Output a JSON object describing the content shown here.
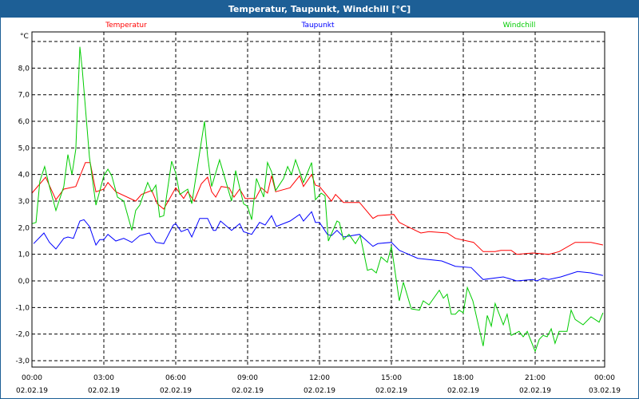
{
  "window": {
    "title": "Temperatur, Taupunkt, Windchill [°C]"
  },
  "chart_data": {
    "type": "line",
    "title": "Temperatur, Taupunkt, Windchill [°C]",
    "ylabel": "°C",
    "xlabel": "",
    "x_unit": "hours since 02.02.19 00:00",
    "xlim": [
      0,
      24
    ],
    "ylim": [
      -3.25,
      9.4
    ],
    "grid": true,
    "legend_placement": "top",
    "yticks": [
      8,
      7,
      6,
      5,
      4,
      3,
      2,
      1,
      0,
      -1,
      -2,
      -3
    ],
    "ytick_labels": [
      "8,0",
      "7,0",
      "6,0",
      "5,0",
      "4,0",
      "3,0",
      "2,0",
      "1,0",
      "0,0",
      "-1,0",
      "-2,0",
      "-3,0"
    ],
    "extra_gridlines_y": [
      9
    ],
    "xticks": [
      0,
      3,
      6,
      9,
      12,
      15,
      18,
      21,
      24
    ],
    "xtick_labels": [
      {
        "time": "00:00",
        "date": "02.02.19"
      },
      {
        "time": "03:00",
        "date": "02.02.19"
      },
      {
        "time": "06:00",
        "date": "02.02.19"
      },
      {
        "time": "09:00",
        "date": "02.02.19"
      },
      {
        "time": "12:00",
        "date": "02.02.19"
      },
      {
        "time": "15:00",
        "date": "02.02.19"
      },
      {
        "time": "18:00",
        "date": "02.02.19"
      },
      {
        "time": "21:00",
        "date": "02.02.19"
      },
      {
        "time": "00:00",
        "date": "03.02.19"
      }
    ],
    "series": [
      {
        "name": "Temperatur",
        "color": "#ff0000",
        "points": [
          [
            0,
            3.3
          ],
          [
            0.57,
            3.9
          ],
          [
            1.0,
            3.05
          ],
          [
            1.33,
            3.45
          ],
          [
            1.83,
            3.55
          ],
          [
            2.23,
            4.45
          ],
          [
            2.43,
            4.45
          ],
          [
            2.67,
            3.35
          ],
          [
            3.0,
            3.45
          ],
          [
            3.17,
            3.7
          ],
          [
            3.5,
            3.35
          ],
          [
            4.33,
            3.0
          ],
          [
            4.57,
            3.25
          ],
          [
            5.0,
            3.4
          ],
          [
            5.23,
            2.9
          ],
          [
            5.5,
            2.7
          ],
          [
            6.0,
            3.5
          ],
          [
            6.33,
            3.1
          ],
          [
            6.5,
            3.35
          ],
          [
            6.77,
            3.0
          ],
          [
            7.07,
            3.65
          ],
          [
            7.33,
            3.9
          ],
          [
            7.5,
            3.35
          ],
          [
            7.67,
            3.15
          ],
          [
            7.9,
            3.55
          ],
          [
            8.23,
            3.5
          ],
          [
            8.43,
            3.15
          ],
          [
            8.67,
            3.45
          ],
          [
            8.9,
            3.1
          ],
          [
            9.33,
            3.1
          ],
          [
            9.57,
            3.5
          ],
          [
            9.83,
            3.3
          ],
          [
            10.0,
            3.95
          ],
          [
            10.17,
            3.35
          ],
          [
            10.77,
            3.5
          ],
          [
            11.17,
            3.95
          ],
          [
            11.33,
            3.55
          ],
          [
            11.67,
            4.0
          ],
          [
            11.83,
            3.6
          ],
          [
            12.0,
            3.55
          ],
          [
            12.5,
            3.0
          ],
          [
            12.67,
            3.25
          ],
          [
            13.0,
            2.95
          ],
          [
            13.67,
            2.95
          ],
          [
            14.23,
            2.35
          ],
          [
            14.43,
            2.45
          ],
          [
            15.1,
            2.5
          ],
          [
            15.33,
            2.2
          ],
          [
            15.77,
            2.0
          ],
          [
            16.23,
            1.8
          ],
          [
            16.57,
            1.85
          ],
          [
            17.33,
            1.8
          ],
          [
            17.67,
            1.6
          ],
          [
            18.43,
            1.45
          ],
          [
            18.83,
            1.1
          ],
          [
            19.33,
            1.1
          ],
          [
            19.57,
            1.15
          ],
          [
            20.0,
            1.15
          ],
          [
            20.23,
            1.0
          ],
          [
            20.9,
            1.05
          ],
          [
            21.57,
            1.0
          ],
          [
            22.0,
            1.1
          ],
          [
            22.67,
            1.45
          ],
          [
            23.33,
            1.45
          ],
          [
            23.83,
            1.35
          ]
        ]
      },
      {
        "name": "Taupunkt",
        "color": "#0000ff",
        "points": [
          [
            0.07,
            1.4
          ],
          [
            0.5,
            1.8
          ],
          [
            0.73,
            1.45
          ],
          [
            1.0,
            1.2
          ],
          [
            1.33,
            1.6
          ],
          [
            1.5,
            1.65
          ],
          [
            1.73,
            1.6
          ],
          [
            2.0,
            2.25
          ],
          [
            2.17,
            2.3
          ],
          [
            2.4,
            2.05
          ],
          [
            2.67,
            1.35
          ],
          [
            2.83,
            1.55
          ],
          [
            3.0,
            1.55
          ],
          [
            3.17,
            1.75
          ],
          [
            3.5,
            1.5
          ],
          [
            3.83,
            1.6
          ],
          [
            4.17,
            1.45
          ],
          [
            4.5,
            1.7
          ],
          [
            4.9,
            1.8
          ],
          [
            5.17,
            1.45
          ],
          [
            5.5,
            1.4
          ],
          [
            5.9,
            2.1
          ],
          [
            6.0,
            2.15
          ],
          [
            6.23,
            1.85
          ],
          [
            6.5,
            1.95
          ],
          [
            6.67,
            1.65
          ],
          [
            7.0,
            2.35
          ],
          [
            7.33,
            2.35
          ],
          [
            7.57,
            1.9
          ],
          [
            7.67,
            1.9
          ],
          [
            7.87,
            2.25
          ],
          [
            8.33,
            1.9
          ],
          [
            8.67,
            2.15
          ],
          [
            8.83,
            1.85
          ],
          [
            9.17,
            1.75
          ],
          [
            9.5,
            2.2
          ],
          [
            9.73,
            2.1
          ],
          [
            10.0,
            2.45
          ],
          [
            10.2,
            2.05
          ],
          [
            10.77,
            2.25
          ],
          [
            11.17,
            2.5
          ],
          [
            11.33,
            2.25
          ],
          [
            11.67,
            2.6
          ],
          [
            11.83,
            2.2
          ],
          [
            12.0,
            2.2
          ],
          [
            12.33,
            1.75
          ],
          [
            12.5,
            1.7
          ],
          [
            12.73,
            1.9
          ],
          [
            13.0,
            1.65
          ],
          [
            13.67,
            1.75
          ],
          [
            14.23,
            1.3
          ],
          [
            14.43,
            1.4
          ],
          [
            15.0,
            1.45
          ],
          [
            15.33,
            1.15
          ],
          [
            16.1,
            0.85
          ],
          [
            17.1,
            0.75
          ],
          [
            17.67,
            0.55
          ],
          [
            18.33,
            0.5
          ],
          [
            18.83,
            0.05
          ],
          [
            19.67,
            0.15
          ],
          [
            20.23,
            0.0
          ],
          [
            20.9,
            0.05
          ],
          [
            21.07,
            0.0
          ],
          [
            21.33,
            0.1
          ],
          [
            21.57,
            0.05
          ],
          [
            22.07,
            0.15
          ],
          [
            22.77,
            0.35
          ],
          [
            23.33,
            0.3
          ],
          [
            23.83,
            0.2
          ]
        ]
      },
      {
        "name": "Windchill",
        "color": "#00cc00",
        "points": [
          [
            0,
            2.15
          ],
          [
            0.17,
            2.2
          ],
          [
            0.33,
            3.75
          ],
          [
            0.53,
            4.3
          ],
          [
            0.73,
            3.55
          ],
          [
            1.0,
            2.65
          ],
          [
            1.33,
            3.55
          ],
          [
            1.5,
            4.75
          ],
          [
            1.67,
            4.0
          ],
          [
            1.83,
            4.95
          ],
          [
            2.0,
            8.8
          ],
          [
            2.1,
            7.95
          ],
          [
            2.4,
            4.65
          ],
          [
            2.67,
            2.85
          ],
          [
            3.0,
            3.95
          ],
          [
            3.17,
            4.2
          ],
          [
            3.33,
            3.95
          ],
          [
            3.57,
            3.15
          ],
          [
            3.83,
            3.0
          ],
          [
            4.17,
            1.9
          ],
          [
            4.33,
            2.65
          ],
          [
            4.5,
            2.85
          ],
          [
            4.83,
            3.7
          ],
          [
            5.0,
            3.35
          ],
          [
            5.17,
            3.6
          ],
          [
            5.33,
            2.4
          ],
          [
            5.5,
            2.45
          ],
          [
            5.83,
            4.5
          ],
          [
            6.0,
            4.05
          ],
          [
            6.17,
            3.25
          ],
          [
            6.5,
            3.45
          ],
          [
            6.67,
            2.9
          ],
          [
            6.9,
            4.25
          ],
          [
            7.2,
            6.0
          ],
          [
            7.33,
            4.7
          ],
          [
            7.5,
            3.55
          ],
          [
            7.83,
            4.55
          ],
          [
            8.33,
            3.0
          ],
          [
            8.5,
            4.15
          ],
          [
            8.83,
            2.9
          ],
          [
            9.0,
            2.8
          ],
          [
            9.17,
            2.3
          ],
          [
            9.37,
            3.85
          ],
          [
            9.67,
            3.15
          ],
          [
            9.83,
            4.45
          ],
          [
            10.0,
            4.1
          ],
          [
            10.17,
            3.4
          ],
          [
            10.5,
            3.85
          ],
          [
            10.67,
            4.3
          ],
          [
            10.83,
            4.0
          ],
          [
            11.0,
            4.55
          ],
          [
            11.33,
            3.7
          ],
          [
            11.67,
            4.45
          ],
          [
            11.83,
            3.05
          ],
          [
            12.07,
            3.3
          ],
          [
            12.23,
            3.2
          ],
          [
            12.37,
            1.5
          ],
          [
            12.73,
            2.25
          ],
          [
            12.83,
            2.2
          ],
          [
            13.0,
            1.55
          ],
          [
            13.23,
            1.75
          ],
          [
            13.5,
            1.4
          ],
          [
            13.7,
            1.7
          ],
          [
            14.0,
            0.4
          ],
          [
            14.17,
            0.45
          ],
          [
            14.37,
            0.3
          ],
          [
            14.57,
            0.9
          ],
          [
            14.83,
            0.7
          ],
          [
            15.0,
            1.3
          ],
          [
            15.33,
            -0.75
          ],
          [
            15.5,
            -0.05
          ],
          [
            15.83,
            -1.05
          ],
          [
            16.17,
            -1.1
          ],
          [
            16.33,
            -0.75
          ],
          [
            16.57,
            -0.9
          ],
          [
            17.0,
            -0.35
          ],
          [
            17.17,
            -0.65
          ],
          [
            17.33,
            -0.5
          ],
          [
            17.5,
            -1.25
          ],
          [
            17.67,
            -1.25
          ],
          [
            17.83,
            -1.1
          ],
          [
            18.0,
            -1.2
          ],
          [
            18.17,
            -0.25
          ],
          [
            18.4,
            -0.75
          ],
          [
            18.83,
            -2.45
          ],
          [
            19.0,
            -1.3
          ],
          [
            19.17,
            -1.7
          ],
          [
            19.33,
            -0.85
          ],
          [
            19.67,
            -1.65
          ],
          [
            19.83,
            -1.25
          ],
          [
            20.0,
            -2.05
          ],
          [
            20.33,
            -1.9
          ],
          [
            20.5,
            -2.1
          ],
          [
            20.67,
            -1.9
          ],
          [
            21.0,
            -2.65
          ],
          [
            21.17,
            -2.2
          ],
          [
            21.33,
            -2.05
          ],
          [
            21.5,
            -2.1
          ],
          [
            21.67,
            -1.8
          ],
          [
            21.83,
            -2.35
          ],
          [
            22.0,
            -1.9
          ],
          [
            22.33,
            -1.9
          ],
          [
            22.5,
            -1.1
          ],
          [
            22.67,
            -1.45
          ],
          [
            23.0,
            -1.65
          ],
          [
            23.33,
            -1.35
          ],
          [
            23.67,
            -1.55
          ],
          [
            23.83,
            -1.2
          ]
        ]
      }
    ]
  }
}
